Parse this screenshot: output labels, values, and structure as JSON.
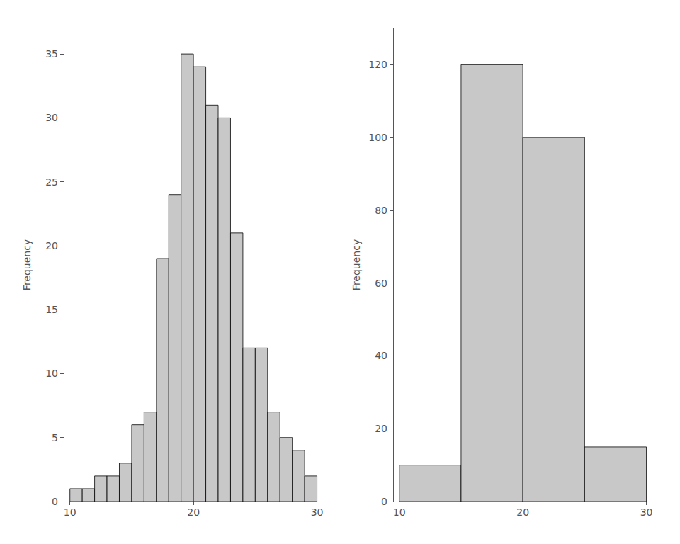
{
  "chart_data": [
    {
      "type": "histogram",
      "bins": [
        10,
        11,
        12,
        13,
        14,
        15,
        16,
        17,
        18,
        19,
        20,
        21,
        22,
        23,
        24,
        25,
        26,
        27,
        28,
        29,
        30
      ],
      "values": [
        1,
        1,
        2,
        2,
        3,
        6,
        7,
        19,
        24,
        35,
        34,
        31,
        30,
        21,
        12,
        12,
        7,
        5,
        4,
        2
      ],
      "color": "#c8c8c8",
      "ylabel": "Frequency",
      "xlim": [
        9.5,
        31
      ],
      "xticks": [
        10,
        20,
        30
      ],
      "ylim": [
        0,
        37
      ],
      "yticks": [
        0,
        5,
        10,
        15,
        20,
        25,
        30,
        35
      ],
      "grid": false
    },
    {
      "type": "histogram",
      "bins": [
        10,
        15,
        20,
        25,
        30
      ],
      "values": [
        10,
        120,
        100,
        15
      ],
      "color": "#c8c8c8",
      "ylabel": "Frequency",
      "xlim": [
        9.5,
        31
      ],
      "xticks": [
        10,
        20,
        30
      ],
      "ylim": [
        0,
        130
      ],
      "yticks": [
        0,
        20,
        40,
        60,
        80,
        100,
        120
      ],
      "grid": false
    }
  ]
}
